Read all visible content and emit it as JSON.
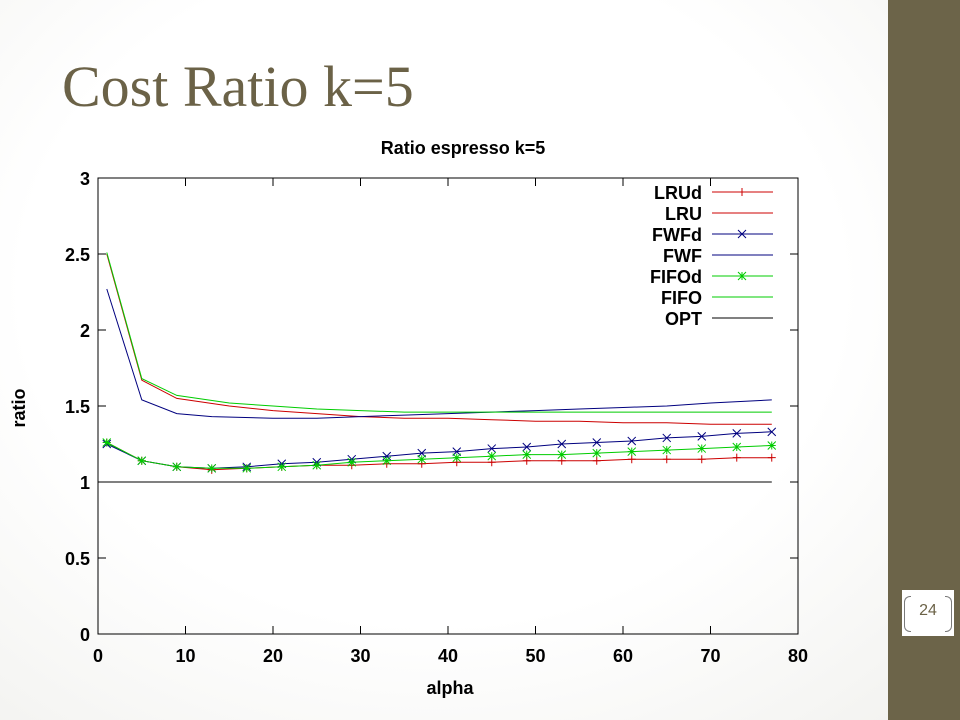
{
  "slide": {
    "title": "Cost Ratio k=5",
    "page_number": "24",
    "panel_color": "#6c6449",
    "title_color": "#6b6247"
  },
  "chart_data": {
    "type": "line",
    "title": "Ratio espresso k=5",
    "xlabel": "alpha",
    "ylabel": "ratio",
    "xlim": [
      0,
      80
    ],
    "ylim": [
      0,
      3
    ],
    "xticks": [
      "0",
      "10",
      "20",
      "30",
      "40",
      "50",
      "60",
      "70",
      "80"
    ],
    "yticks": [
      "0",
      "0.5",
      "1",
      "1.5",
      "2",
      "2.5",
      "3"
    ],
    "grid": false,
    "legend_position": "top-right",
    "series": [
      {
        "name": "LRUd",
        "color": "#cc0000",
        "marker": "plus",
        "x": [
          1,
          5,
          9,
          13,
          17,
          21,
          25,
          29,
          33,
          37,
          41,
          45,
          49,
          53,
          57,
          61,
          65,
          69,
          73,
          77
        ],
        "y": [
          1.26,
          1.14,
          1.1,
          1.08,
          1.09,
          1.1,
          1.11,
          1.11,
          1.12,
          1.12,
          1.13,
          1.13,
          1.14,
          1.14,
          1.14,
          1.15,
          1.15,
          1.15,
          1.16,
          1.16
        ]
      },
      {
        "name": "LRU",
        "color": "#cc0000",
        "marker": "none",
        "x": [
          1,
          5,
          9,
          15,
          20,
          25,
          30,
          35,
          40,
          45,
          50,
          55,
          60,
          65,
          70,
          77
        ],
        "y": [
          2.5,
          1.67,
          1.55,
          1.5,
          1.47,
          1.45,
          1.43,
          1.42,
          1.42,
          1.41,
          1.4,
          1.4,
          1.39,
          1.39,
          1.38,
          1.38
        ]
      },
      {
        "name": "FWFd",
        "color": "#00007f",
        "marker": "x",
        "x": [
          1,
          5,
          9,
          13,
          17,
          21,
          25,
          29,
          33,
          37,
          41,
          45,
          49,
          53,
          57,
          61,
          65,
          69,
          73,
          77
        ],
        "y": [
          1.25,
          1.14,
          1.1,
          1.09,
          1.1,
          1.12,
          1.13,
          1.15,
          1.17,
          1.19,
          1.2,
          1.22,
          1.23,
          1.25,
          1.26,
          1.27,
          1.29,
          1.3,
          1.32,
          1.33
        ]
      },
      {
        "name": "FWF",
        "color": "#00007f",
        "marker": "none",
        "x": [
          1,
          5,
          9,
          13,
          20,
          25,
          30,
          35,
          40,
          45,
          50,
          55,
          60,
          65,
          70,
          77
        ],
        "y": [
          2.27,
          1.54,
          1.45,
          1.43,
          1.42,
          1.42,
          1.43,
          1.44,
          1.45,
          1.46,
          1.47,
          1.48,
          1.49,
          1.5,
          1.52,
          1.54
        ]
      },
      {
        "name": "FIFOd",
        "color": "#00cc00",
        "marker": "star",
        "x": [
          1,
          5,
          9,
          13,
          17,
          21,
          25,
          29,
          33,
          37,
          41,
          45,
          49,
          53,
          57,
          61,
          65,
          69,
          73,
          77
        ],
        "y": [
          1.26,
          1.14,
          1.1,
          1.09,
          1.09,
          1.1,
          1.11,
          1.13,
          1.14,
          1.15,
          1.16,
          1.17,
          1.18,
          1.18,
          1.19,
          1.2,
          1.21,
          1.22,
          1.23,
          1.24
        ]
      },
      {
        "name": "FIFO",
        "color": "#00cc00",
        "marker": "none",
        "x": [
          1,
          5,
          9,
          15,
          20,
          25,
          30,
          35,
          40,
          45,
          50,
          55,
          60,
          65,
          70,
          77
        ],
        "y": [
          2.51,
          1.68,
          1.57,
          1.52,
          1.5,
          1.48,
          1.47,
          1.46,
          1.46,
          1.46,
          1.46,
          1.46,
          1.46,
          1.46,
          1.46,
          1.46
        ]
      },
      {
        "name": "OPT",
        "color": "#000000",
        "marker": "none",
        "x": [
          0,
          77
        ],
        "y": [
          1.0,
          1.0
        ]
      }
    ]
  }
}
